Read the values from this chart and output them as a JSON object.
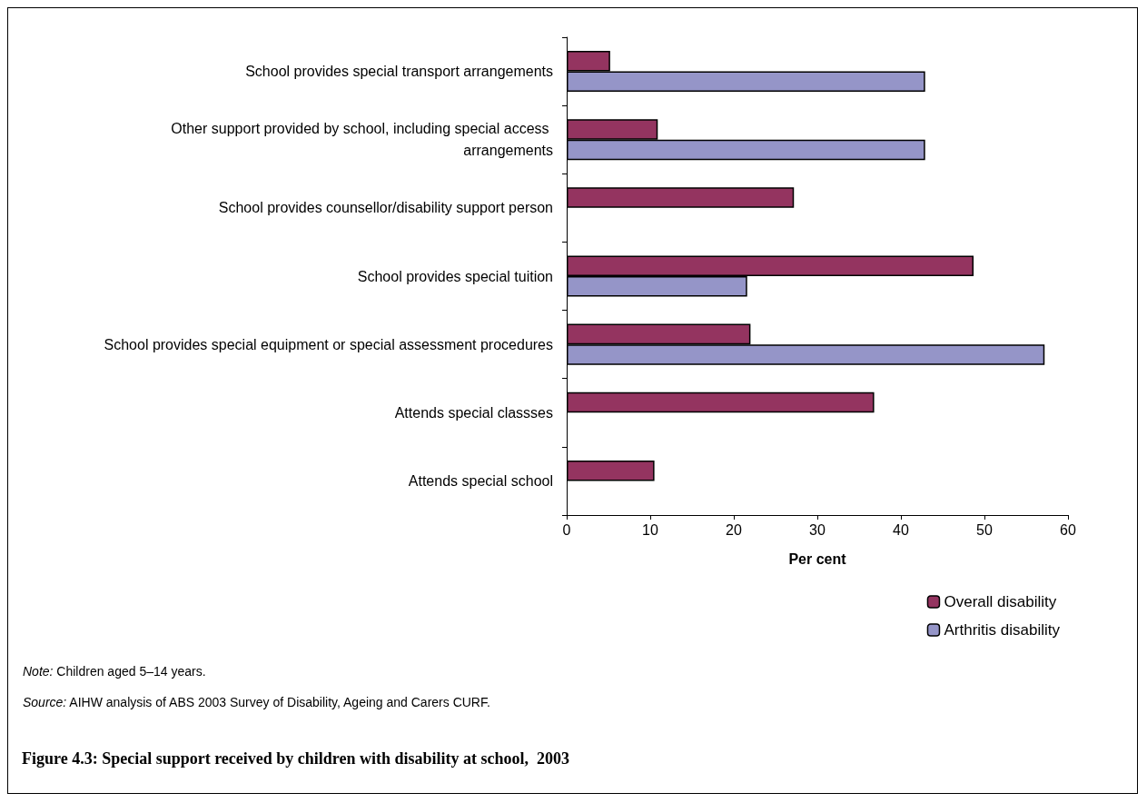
{
  "chart_data": {
    "type": "bar",
    "orientation": "horizontal",
    "title": "Figure 4.3: Special support received by children with disability at school,  2003",
    "xlabel": "Per cent",
    "categories": [
      "School provides special transport arrangements",
      "Other support provided by school, including special access arrangements",
      "School provides counsellor/disability support person",
      "School provides special tuition",
      "School provides special equipment or special assessment procedures",
      "Attends special classses",
      "Attends special school"
    ],
    "series": [
      {
        "name": "Overall disability",
        "color": "#943460",
        "values": [
          5.2,
          10.9,
          27.2,
          48.7,
          22.0,
          36.8,
          10.5
        ]
      },
      {
        "name": "Arthritis disability",
        "color": "#9595c8",
        "values": [
          42.9,
          42.9,
          null,
          21.6,
          57.2,
          null,
          null
        ]
      }
    ],
    "xlim": [
      0,
      60
    ],
    "xticks": [
      0,
      10,
      20,
      30,
      40,
      50,
      60
    ],
    "grid": false,
    "legend": "bottom right",
    "annotations": [
      "Note: Children aged 5–14 years.",
      "Source: AIHW analysis of ABS 2003 Survey of Disability, Ageing and Carers CURF."
    ]
  }
}
